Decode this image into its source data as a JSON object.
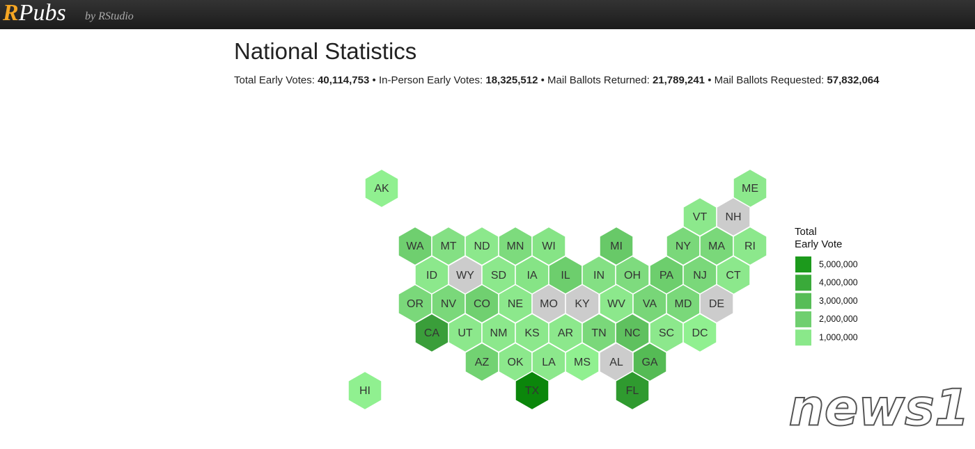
{
  "header": {
    "logo_r": "R",
    "logo_rest": "Pubs",
    "byline": "by RStudio"
  },
  "title": "National Statistics",
  "separator": "•",
  "stats": [
    {
      "label": "Total Early Votes:",
      "value": "40,114,753"
    },
    {
      "label": "In-Person Early Votes:",
      "value": "18,325,512"
    },
    {
      "label": "Mail Ballots Returned:",
      "value": "21,789,241"
    },
    {
      "label": "Mail Ballots Requested:",
      "value": "57,832,064"
    }
  ],
  "legend": {
    "title_lines": [
      "Total",
      "Early Vote"
    ],
    "items": [
      {
        "label": "5,000,000",
        "color": "#1c9a1c"
      },
      {
        "label": "4,000,000",
        "color": "#3aaa3a"
      },
      {
        "label": "3,000,000",
        "color": "#57bd57"
      },
      {
        "label": "2,000,000",
        "color": "#6fcf6f"
      },
      {
        "label": "1,000,000",
        "color": "#8ae88a"
      }
    ]
  },
  "states": [
    {
      "label": "AK",
      "color": "#90f090"
    },
    {
      "label": "ME",
      "color": "#8ce88c"
    },
    {
      "label": "VT",
      "color": "#8ce88c"
    },
    {
      "label": "NH",
      "color": "#cccccc"
    },
    {
      "label": "WA",
      "color": "#6fcf6f"
    },
    {
      "label": "MT",
      "color": "#84e084"
    },
    {
      "label": "ND",
      "color": "#8ce88c"
    },
    {
      "label": "MN",
      "color": "#7ddb7d"
    },
    {
      "label": "WI",
      "color": "#86e486"
    },
    {
      "label": "MI",
      "color": "#68c968"
    },
    {
      "label": "NY",
      "color": "#7ad87a"
    },
    {
      "label": "MA",
      "color": "#7ad87a"
    },
    {
      "label": "RI",
      "color": "#8ce88c"
    },
    {
      "label": "ID",
      "color": "#8ce88c"
    },
    {
      "label": "WY",
      "color": "#cccccc"
    },
    {
      "label": "SD",
      "color": "#8ce88c"
    },
    {
      "label": "IA",
      "color": "#86e486"
    },
    {
      "label": "IL",
      "color": "#6dce6d"
    },
    {
      "label": "IN",
      "color": "#84e084"
    },
    {
      "label": "OH",
      "color": "#7edb7e"
    },
    {
      "label": "PA",
      "color": "#6dce6d"
    },
    {
      "label": "NJ",
      "color": "#7ad87a"
    },
    {
      "label": "CT",
      "color": "#8ce88c"
    },
    {
      "label": "OR",
      "color": "#7ad87a"
    },
    {
      "label": "NV",
      "color": "#7ad87a"
    },
    {
      "label": "CO",
      "color": "#70d070"
    },
    {
      "label": "NE",
      "color": "#8ce88c"
    },
    {
      "label": "MO",
      "color": "#cccccc"
    },
    {
      "label": "KY",
      "color": "#cccccc"
    },
    {
      "label": "WV",
      "color": "#8ce88c"
    },
    {
      "label": "VA",
      "color": "#78d678"
    },
    {
      "label": "MD",
      "color": "#7ad87a"
    },
    {
      "label": "DE",
      "color": "#cccccc"
    },
    {
      "label": "CA",
      "color": "#3a9e3a"
    },
    {
      "label": "UT",
      "color": "#8ce88c"
    },
    {
      "label": "NM",
      "color": "#8ce88c"
    },
    {
      "label": "KS",
      "color": "#8ce88c"
    },
    {
      "label": "AR",
      "color": "#8ce88c"
    },
    {
      "label": "TN",
      "color": "#7ad87a"
    },
    {
      "label": "NC",
      "color": "#5fc15f"
    },
    {
      "label": "SC",
      "color": "#8ce88c"
    },
    {
      "label": "DC",
      "color": "#90f090"
    },
    {
      "label": "AZ",
      "color": "#72d272"
    },
    {
      "label": "OK",
      "color": "#8ce88c"
    },
    {
      "label": "LA",
      "color": "#8ce88c"
    },
    {
      "label": "MS",
      "color": "#90f090"
    },
    {
      "label": "AL",
      "color": "#cccccc"
    },
    {
      "label": "GA",
      "color": "#55bb55"
    },
    {
      "label": "HI",
      "color": "#90f090"
    },
    {
      "label": "TX",
      "color": "#0b860b"
    },
    {
      "label": "FL",
      "color": "#2f9a2f"
    }
  ],
  "watermark": "news1"
}
